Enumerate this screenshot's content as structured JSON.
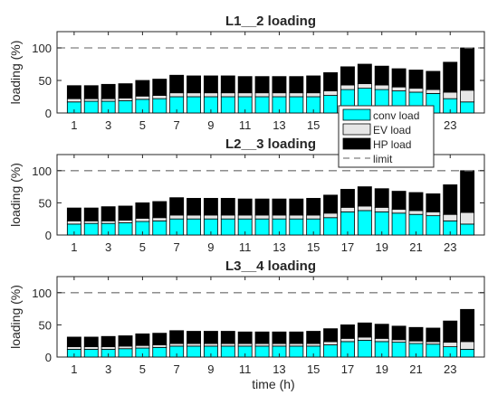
{
  "figure": {
    "xlabel": "time (h)"
  },
  "colors": {
    "conv": "#00ffff",
    "ev": "#e6e6e6",
    "hp": "#000000",
    "limit": "#808080",
    "axis": "#262626"
  },
  "legend": {
    "placement": "between-top-and-middle-right",
    "entries": [
      {
        "key": "conv",
        "label": "conv load"
      },
      {
        "key": "ev",
        "label": "EV load"
      },
      {
        "key": "hp",
        "label": "HP load"
      },
      {
        "key": "limit",
        "label": "limit"
      }
    ]
  },
  "chart_data": [
    {
      "type": "bar",
      "stacked": true,
      "title": "L1__2 loading",
      "xlabel": "",
      "ylabel": "loading (%)",
      "ylim": [
        0,
        125
      ],
      "yticks": [
        0,
        50,
        100
      ],
      "xlim": [
        0,
        25
      ],
      "xticks": [
        1,
        3,
        5,
        7,
        9,
        11,
        13,
        15,
        17,
        19,
        21,
        23
      ],
      "limit": 100,
      "categories": [
        1,
        2,
        3,
        4,
        5,
        6,
        7,
        8,
        9,
        10,
        11,
        12,
        13,
        14,
        15,
        16,
        17,
        18,
        19,
        20,
        21,
        22,
        23,
        24
      ],
      "series": [
        {
          "name": "conv load",
          "values": [
            17,
            18,
            18,
            19,
            21,
            22,
            25,
            25,
            25,
            25,
            25,
            25,
            25,
            25,
            25,
            27,
            36,
            38,
            36,
            34,
            32,
            30,
            22,
            17
          ]
        },
        {
          "name": "EV load",
          "values": [
            5,
            4,
            4,
            4,
            5,
            5,
            6,
            6,
            6,
            6,
            6,
            6,
            6,
            6,
            6,
            7,
            7,
            7,
            7,
            6,
            6,
            6,
            10,
            18
          ]
        },
        {
          "name": "HP load",
          "values": [
            20,
            20,
            22,
            22,
            24,
            25,
            27,
            26,
            26,
            26,
            25,
            25,
            25,
            25,
            26,
            28,
            28,
            30,
            29,
            28,
            28,
            28,
            46,
            65
          ]
        }
      ]
    },
    {
      "type": "bar",
      "stacked": true,
      "title": "L2__3 loading",
      "xlabel": "",
      "ylabel": "loading (%)",
      "ylim": [
        0,
        125
      ],
      "yticks": [
        0,
        50,
        100
      ],
      "xlim": [
        0,
        25
      ],
      "xticks": [
        1,
        3,
        5,
        7,
        9,
        11,
        13,
        15,
        17,
        19,
        21,
        23
      ],
      "limit": 100,
      "categories": [
        1,
        2,
        3,
        4,
        5,
        6,
        7,
        8,
        9,
        10,
        11,
        12,
        13,
        14,
        15,
        16,
        17,
        18,
        19,
        20,
        21,
        22,
        23,
        24
      ],
      "series": [
        {
          "name": "conv load",
          "values": [
            17,
            18,
            18,
            19,
            21,
            22,
            25,
            25,
            25,
            25,
            25,
            25,
            25,
            25,
            25,
            27,
            36,
            38,
            36,
            34,
            32,
            30,
            22,
            17
          ]
        },
        {
          "name": "EV load",
          "values": [
            5,
            4,
            4,
            4,
            5,
            5,
            6,
            6,
            6,
            6,
            6,
            6,
            6,
            6,
            6,
            7,
            7,
            7,
            7,
            6,
            6,
            6,
            10,
            18
          ]
        },
        {
          "name": "HP load",
          "values": [
            20,
            20,
            22,
            22,
            24,
            25,
            27,
            26,
            26,
            26,
            25,
            25,
            25,
            25,
            26,
            28,
            28,
            30,
            29,
            28,
            28,
            28,
            46,
            65
          ]
        }
      ]
    },
    {
      "type": "bar",
      "stacked": true,
      "title": "L3__4 loading",
      "xlabel": "time (h)",
      "ylabel": "loading (%)",
      "ylim": [
        0,
        125
      ],
      "yticks": [
        0,
        50,
        100
      ],
      "xlim": [
        0,
        25
      ],
      "xticks": [
        1,
        3,
        5,
        7,
        9,
        11,
        13,
        15,
        17,
        19,
        21,
        23
      ],
      "limit": 100,
      "categories": [
        1,
        2,
        3,
        4,
        5,
        6,
        7,
        8,
        9,
        10,
        11,
        12,
        13,
        14,
        15,
        16,
        17,
        18,
        19,
        20,
        21,
        22,
        23,
        24
      ],
      "series": [
        {
          "name": "conv load",
          "values": [
            12,
            12,
            12,
            13,
            14,
            15,
            17,
            17,
            17,
            17,
            17,
            17,
            17,
            17,
            17,
            19,
            24,
            26,
            24,
            23,
            21,
            20,
            16,
            12
          ]
        },
        {
          "name": "EV load",
          "values": [
            4,
            4,
            4,
            4,
            4,
            4,
            4,
            4,
            4,
            4,
            4,
            4,
            4,
            4,
            4,
            5,
            5,
            5,
            5,
            4,
            4,
            4,
            7,
            12
          ]
        },
        {
          "name": "HP load",
          "values": [
            15,
            15,
            16,
            16,
            18,
            18,
            20,
            19,
            19,
            19,
            18,
            18,
            18,
            18,
            19,
            20,
            21,
            22,
            22,
            21,
            21,
            21,
            33,
            50
          ]
        }
      ]
    }
  ]
}
